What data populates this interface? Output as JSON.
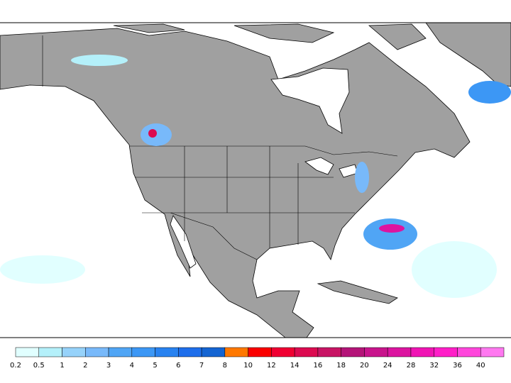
{
  "colorbar": {
    "levels": [
      0.2,
      0.5,
      1,
      2,
      3,
      4,
      5,
      6,
      7,
      8,
      10,
      12,
      14,
      16,
      18,
      20,
      24,
      28,
      32,
      36,
      40
    ],
    "colors": [
      "#e1ffff",
      "#b4f0fa",
      "#96d2fa",
      "#78b9fa",
      "#50a5f5",
      "#3c97f5",
      "#2882f0",
      "#1e6eeb",
      "#1464d2",
      "#ff7800",
      "#fa0000",
      "#f00032",
      "#dc0a50",
      "#c81464",
      "#b41478",
      "#c8148c",
      "#dc14a0",
      "#f014b4",
      "#ff1ec8",
      "#ff46dc",
      "#ff78f0"
    ]
  }
}
